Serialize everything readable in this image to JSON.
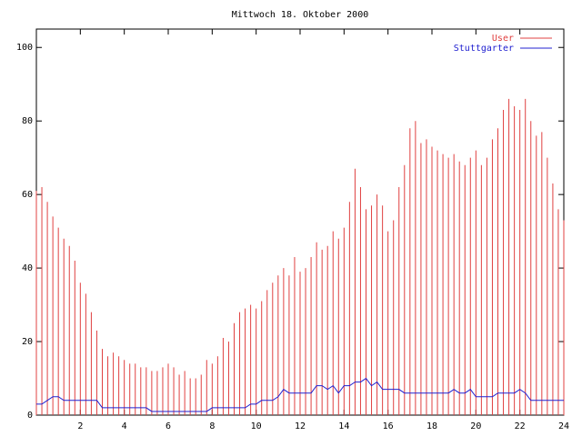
{
  "chart_data": {
    "type": "impulse-line",
    "title": "Mittwoch 18. Oktober 2000",
    "x": [
      0,
      0.25,
      0.5,
      0.75,
      1,
      1.25,
      1.5,
      1.75,
      2,
      2.25,
      2.5,
      2.75,
      3,
      3.25,
      3.5,
      3.75,
      4,
      4.25,
      4.5,
      4.75,
      5,
      5.25,
      5.5,
      5.75,
      6,
      6.25,
      6.5,
      6.75,
      7,
      7.25,
      7.5,
      7.75,
      8,
      8.25,
      8.5,
      8.75,
      9,
      9.25,
      9.5,
      9.75,
      10,
      10.25,
      10.5,
      10.75,
      11,
      11.25,
      11.5,
      11.75,
      12,
      12.25,
      12.5,
      12.75,
      13,
      13.25,
      13.5,
      13.75,
      14,
      14.25,
      14.5,
      14.75,
      15,
      15.25,
      15.5,
      15.75,
      16,
      16.25,
      16.5,
      16.75,
      17,
      17.25,
      17.5,
      17.75,
      18,
      18.25,
      18.5,
      18.75,
      19,
      19.25,
      19.5,
      19.75,
      20,
      20.25,
      20.5,
      20.75,
      21,
      21.25,
      21.5,
      21.75,
      22,
      22.25,
      22.5,
      22.75,
      23,
      23.25,
      23.5,
      23.75,
      24
    ],
    "series": [
      {
        "name": "User",
        "color": "#e04040",
        "style": "impulses",
        "values": [
          61,
          62,
          58,
          54,
          51,
          48,
          46,
          42,
          36,
          33,
          28,
          23,
          18,
          16,
          17,
          16,
          15,
          14,
          14,
          13,
          13,
          12,
          12,
          13,
          14,
          13,
          11,
          12,
          10,
          10,
          11,
          15,
          14,
          16,
          21,
          20,
          25,
          28,
          29,
          30,
          29,
          31,
          34,
          36,
          38,
          40,
          38,
          43,
          39,
          40,
          43,
          47,
          45,
          46,
          50,
          48,
          51,
          58,
          67,
          62,
          56,
          57,
          60,
          57,
          50,
          53,
          62,
          68,
          78,
          80,
          74,
          75,
          73,
          72,
          71,
          70,
          71,
          69,
          68,
          70,
          72,
          68,
          70,
          75,
          78,
          83,
          86,
          84,
          83,
          86,
          80,
          76,
          77,
          70,
          63,
          56,
          53
        ]
      },
      {
        "name": "Stuttgarter",
        "color": "#2020d0",
        "style": "line",
        "values": [
          3,
          3,
          4,
          5,
          5,
          4,
          4,
          4,
          4,
          4,
          4,
          4,
          2,
          2,
          2,
          2,
          2,
          2,
          2,
          2,
          2,
          1,
          1,
          1,
          1,
          1,
          1,
          1,
          1,
          1,
          1,
          1,
          2,
          2,
          2,
          2,
          2,
          2,
          2,
          3,
          3,
          4,
          4,
          4,
          5,
          7,
          6,
          6,
          6,
          6,
          6,
          8,
          8,
          7,
          8,
          6,
          8,
          8,
          9,
          9,
          10,
          8,
          9,
          7,
          7,
          7,
          7,
          6,
          6,
          6,
          6,
          6,
          6,
          6,
          6,
          6,
          7,
          6,
          6,
          7,
          5,
          5,
          5,
          5,
          6,
          6,
          6,
          6,
          7,
          6,
          4,
          4,
          4,
          4,
          4,
          4,
          4
        ]
      }
    ],
    "xlim": [
      0,
      24
    ],
    "xticks": [
      2,
      4,
      6,
      8,
      10,
      12,
      14,
      16,
      18,
      20,
      22,
      24
    ],
    "ylim": [
      0,
      105
    ],
    "yticks": [
      0,
      20,
      40,
      60,
      80,
      100
    ],
    "legend": "top-right"
  }
}
